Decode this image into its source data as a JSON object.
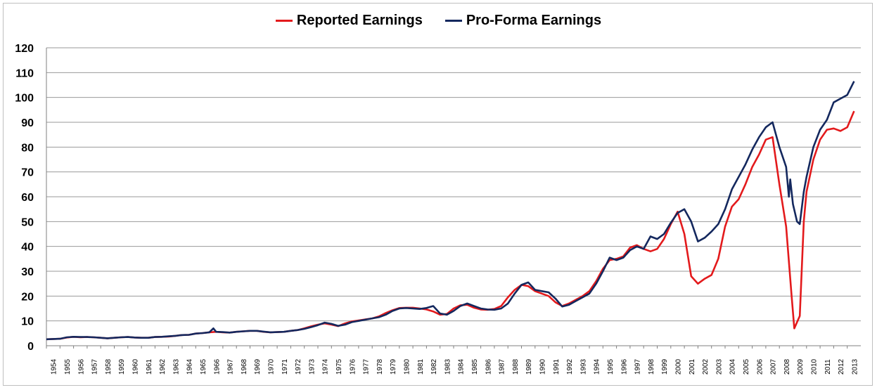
{
  "chart_data": {
    "type": "line",
    "title": "",
    "xlabel": "",
    "ylabel": "",
    "ylim": [
      0,
      120
    ],
    "yticks": [
      "0",
      "10",
      "20",
      "30",
      "40",
      "50",
      "60",
      "70",
      "80",
      "90",
      "100",
      "110",
      "120"
    ],
    "xtick_labels": [
      "1954",
      "1955",
      "1956",
      "1957",
      "1958",
      "1959",
      "1960",
      "1961",
      "1962",
      "1963",
      "1964",
      "1965",
      "1966",
      "1967",
      "1968",
      "1969",
      "1970",
      "1971",
      "1972",
      "1973",
      "1974",
      "1975",
      "1976",
      "1977",
      "1978",
      "1979",
      "1980",
      "1981",
      "1982",
      "1983",
      "1984",
      "1985",
      "1986",
      "1987",
      "1988",
      "1989",
      "1990",
      "1991",
      "1992",
      "1993",
      "1994",
      "1995",
      "1996",
      "1997",
      "1998",
      "1999",
      "2000",
      "2001",
      "2002",
      "2003",
      "2004",
      "2005",
      "2006",
      "2007",
      "2008",
      "2009",
      "2010",
      "2011",
      "2012",
      "2013"
    ],
    "grid": "horizontal",
    "legend": "top-center",
    "series": [
      {
        "name": "Reported Earnings",
        "color": "#e31a1c",
        "points": [
          [
            1954.0,
            2.6
          ],
          [
            1955.0,
            2.8
          ],
          [
            1955.5,
            3.3
          ],
          [
            1956.0,
            3.6
          ],
          [
            1956.5,
            3.4
          ],
          [
            1957.0,
            3.5
          ],
          [
            1957.5,
            3.4
          ],
          [
            1958.0,
            3.2
          ],
          [
            1958.5,
            3.0
          ],
          [
            1959.0,
            3.2
          ],
          [
            1959.5,
            3.4
          ],
          [
            1960.0,
            3.5
          ],
          [
            1960.5,
            3.3
          ],
          [
            1961.0,
            3.2
          ],
          [
            1961.5,
            3.2
          ],
          [
            1962.0,
            3.5
          ],
          [
            1962.5,
            3.6
          ],
          [
            1963.0,
            3.7
          ],
          [
            1963.5,
            4.0
          ],
          [
            1964.0,
            4.3
          ],
          [
            1964.5,
            4.4
          ],
          [
            1965.0,
            4.9
          ],
          [
            1965.5,
            5.1
          ],
          [
            1966.0,
            5.4
          ],
          [
            1966.5,
            5.6
          ],
          [
            1967.0,
            5.4
          ],
          [
            1967.5,
            5.3
          ],
          [
            1968.0,
            5.6
          ],
          [
            1968.5,
            5.8
          ],
          [
            1969.0,
            6.0
          ],
          [
            1969.5,
            6.0
          ],
          [
            1970.0,
            5.6
          ],
          [
            1970.5,
            5.4
          ],
          [
            1971.0,
            5.5
          ],
          [
            1971.5,
            5.6
          ],
          [
            1972.0,
            6.0
          ],
          [
            1972.5,
            6.3
          ],
          [
            1973.0,
            7.0
          ],
          [
            1973.5,
            7.8
          ],
          [
            1974.0,
            8.5
          ],
          [
            1974.5,
            9.0
          ],
          [
            1975.0,
            8.5
          ],
          [
            1975.5,
            7.9
          ],
          [
            1976.0,
            9.0
          ],
          [
            1976.5,
            9.8
          ],
          [
            1977.0,
            10.2
          ],
          [
            1977.5,
            10.6
          ],
          [
            1978.0,
            11.0
          ],
          [
            1978.5,
            11.8
          ],
          [
            1979.0,
            13.2
          ],
          [
            1979.5,
            14.3
          ],
          [
            1980.0,
            15.2
          ],
          [
            1980.5,
            15.3
          ],
          [
            1981.0,
            15.3
          ],
          [
            1981.5,
            15.0
          ],
          [
            1982.0,
            14.6
          ],
          [
            1982.5,
            13.8
          ],
          [
            1983.0,
            12.5
          ],
          [
            1983.5,
            12.8
          ],
          [
            1984.0,
            15.0
          ],
          [
            1984.5,
            16.3
          ],
          [
            1985.0,
            16.5
          ],
          [
            1985.5,
            15.3
          ],
          [
            1986.0,
            14.6
          ],
          [
            1986.5,
            14.5
          ],
          [
            1987.0,
            14.8
          ],
          [
            1987.5,
            16.0
          ],
          [
            1988.0,
            19.5
          ],
          [
            1988.5,
            22.5
          ],
          [
            1989.0,
            24.5
          ],
          [
            1989.5,
            24.0
          ],
          [
            1990.0,
            22.0
          ],
          [
            1990.5,
            21.0
          ],
          [
            1991.0,
            20.0
          ],
          [
            1991.5,
            17.5
          ],
          [
            1992.0,
            16.0
          ],
          [
            1992.5,
            17.0
          ],
          [
            1993.0,
            18.5
          ],
          [
            1993.5,
            20.0
          ],
          [
            1994.0,
            22.0
          ],
          [
            1994.5,
            26.0
          ],
          [
            1995.0,
            31.0
          ],
          [
            1995.5,
            34.5
          ],
          [
            1996.0,
            35.0
          ],
          [
            1996.5,
            36.0
          ],
          [
            1997.0,
            39.5
          ],
          [
            1997.5,
            40.5
          ],
          [
            1998.0,
            39.0
          ],
          [
            1998.5,
            38.0
          ],
          [
            1999.0,
            39.0
          ],
          [
            1999.5,
            43.0
          ],
          [
            2000.0,
            49.0
          ],
          [
            2000.5,
            54.0
          ],
          [
            2001.0,
            45.0
          ],
          [
            2001.5,
            28.0
          ],
          [
            2002.0,
            25.0
          ],
          [
            2002.5,
            27.0
          ],
          [
            2003.0,
            28.5
          ],
          [
            2003.5,
            35.0
          ],
          [
            2004.0,
            48.0
          ],
          [
            2004.5,
            56.0
          ],
          [
            2005.0,
            59.0
          ],
          [
            2005.5,
            65.0
          ],
          [
            2006.0,
            72.0
          ],
          [
            2006.5,
            77.0
          ],
          [
            2007.0,
            83.0
          ],
          [
            2007.5,
            84.0
          ],
          [
            2008.0,
            65.0
          ],
          [
            2008.5,
            48.0
          ],
          [
            2008.9,
            20.0
          ],
          [
            2009.1,
            7.0
          ],
          [
            2009.5,
            12.0
          ],
          [
            2009.8,
            50.0
          ],
          [
            2010.0,
            62.0
          ],
          [
            2010.5,
            75.0
          ],
          [
            2011.0,
            83.0
          ],
          [
            2011.5,
            87.0
          ],
          [
            2012.0,
            87.5
          ],
          [
            2012.5,
            86.5
          ],
          [
            2013.0,
            88.0
          ],
          [
            2013.5,
            94.5
          ]
        ]
      },
      {
        "name": "Pro-Forma Earnings",
        "color": "#14285e",
        "points": [
          [
            1954.0,
            2.6
          ],
          [
            1955.0,
            2.8
          ],
          [
            1955.5,
            3.4
          ],
          [
            1956.0,
            3.6
          ],
          [
            1956.5,
            3.5
          ],
          [
            1957.0,
            3.5
          ],
          [
            1957.5,
            3.4
          ],
          [
            1958.0,
            3.2
          ],
          [
            1958.5,
            3.0
          ],
          [
            1959.0,
            3.2
          ],
          [
            1959.5,
            3.4
          ],
          [
            1960.0,
            3.5
          ],
          [
            1960.5,
            3.3
          ],
          [
            1961.0,
            3.2
          ],
          [
            1961.5,
            3.2
          ],
          [
            1962.0,
            3.5
          ],
          [
            1962.5,
            3.6
          ],
          [
            1963.0,
            3.8
          ],
          [
            1963.5,
            4.0
          ],
          [
            1964.0,
            4.3
          ],
          [
            1964.5,
            4.4
          ],
          [
            1965.0,
            4.9
          ],
          [
            1965.5,
            5.1
          ],
          [
            1966.0,
            5.4
          ],
          [
            1966.3,
            7.0
          ],
          [
            1966.5,
            5.6
          ],
          [
            1967.0,
            5.5
          ],
          [
            1967.5,
            5.3
          ],
          [
            1968.0,
            5.6
          ],
          [
            1968.5,
            5.8
          ],
          [
            1969.0,
            6.0
          ],
          [
            1969.5,
            6.0
          ],
          [
            1970.0,
            5.7
          ],
          [
            1970.5,
            5.4
          ],
          [
            1971.0,
            5.5
          ],
          [
            1971.5,
            5.6
          ],
          [
            1972.0,
            6.0
          ],
          [
            1972.5,
            6.3
          ],
          [
            1973.0,
            6.8
          ],
          [
            1973.5,
            7.5
          ],
          [
            1974.0,
            8.3
          ],
          [
            1974.5,
            9.3
          ],
          [
            1975.0,
            8.8
          ],
          [
            1975.5,
            8.0
          ],
          [
            1976.0,
            8.5
          ],
          [
            1976.5,
            9.5
          ],
          [
            1977.0,
            10.0
          ],
          [
            1977.5,
            10.5
          ],
          [
            1978.0,
            11.0
          ],
          [
            1978.5,
            11.5
          ],
          [
            1979.0,
            12.5
          ],
          [
            1979.5,
            14.0
          ],
          [
            1980.0,
            15.0
          ],
          [
            1980.5,
            15.2
          ],
          [
            1981.0,
            15.0
          ],
          [
            1981.5,
            14.8
          ],
          [
            1982.0,
            15.2
          ],
          [
            1982.5,
            16.0
          ],
          [
            1983.0,
            13.0
          ],
          [
            1983.5,
            12.5
          ],
          [
            1984.0,
            14.0
          ],
          [
            1984.5,
            16.0
          ],
          [
            1985.0,
            17.0
          ],
          [
            1985.5,
            16.0
          ],
          [
            1986.0,
            15.0
          ],
          [
            1986.5,
            14.6
          ],
          [
            1987.0,
            14.5
          ],
          [
            1987.5,
            15.0
          ],
          [
            1988.0,
            17.0
          ],
          [
            1988.5,
            21.0
          ],
          [
            1989.0,
            24.5
          ],
          [
            1989.5,
            25.5
          ],
          [
            1990.0,
            22.5
          ],
          [
            1990.5,
            22.0
          ],
          [
            1991.0,
            21.5
          ],
          [
            1991.5,
            19.0
          ],
          [
            1992.0,
            15.8
          ],
          [
            1992.5,
            16.5
          ],
          [
            1993.0,
            18.0
          ],
          [
            1993.5,
            19.5
          ],
          [
            1994.0,
            21.0
          ],
          [
            1994.5,
            25.0
          ],
          [
            1995.0,
            30.0
          ],
          [
            1995.5,
            35.5
          ],
          [
            1996.0,
            34.5
          ],
          [
            1996.5,
            35.5
          ],
          [
            1997.0,
            38.5
          ],
          [
            1997.5,
            40.0
          ],
          [
            1998.0,
            39.0
          ],
          [
            1998.5,
            44.0
          ],
          [
            1999.0,
            43.0
          ],
          [
            1999.5,
            45.0
          ],
          [
            2000.0,
            49.5
          ],
          [
            2000.5,
            53.5
          ],
          [
            2001.0,
            55.0
          ],
          [
            2001.5,
            50.0
          ],
          [
            2002.0,
            42.0
          ],
          [
            2002.5,
            43.5
          ],
          [
            2003.0,
            46.0
          ],
          [
            2003.5,
            49.0
          ],
          [
            2004.0,
            55.0
          ],
          [
            2004.5,
            63.0
          ],
          [
            2005.0,
            68.0
          ],
          [
            2005.5,
            73.0
          ],
          [
            2006.0,
            79.0
          ],
          [
            2006.5,
            84.0
          ],
          [
            2007.0,
            88.0
          ],
          [
            2007.5,
            90.0
          ],
          [
            2008.0,
            80.0
          ],
          [
            2008.5,
            72.0
          ],
          [
            2008.7,
            60.0
          ],
          [
            2008.8,
            67.0
          ],
          [
            2009.0,
            57.0
          ],
          [
            2009.3,
            50.0
          ],
          [
            2009.5,
            49.0
          ],
          [
            2009.8,
            62.0
          ],
          [
            2010.0,
            68.0
          ],
          [
            2010.5,
            80.0
          ],
          [
            2011.0,
            87.0
          ],
          [
            2011.5,
            91.0
          ],
          [
            2012.0,
            98.0
          ],
          [
            2012.5,
            99.5
          ],
          [
            2013.0,
            101.0
          ],
          [
            2013.5,
            106.5
          ]
        ]
      }
    ]
  }
}
